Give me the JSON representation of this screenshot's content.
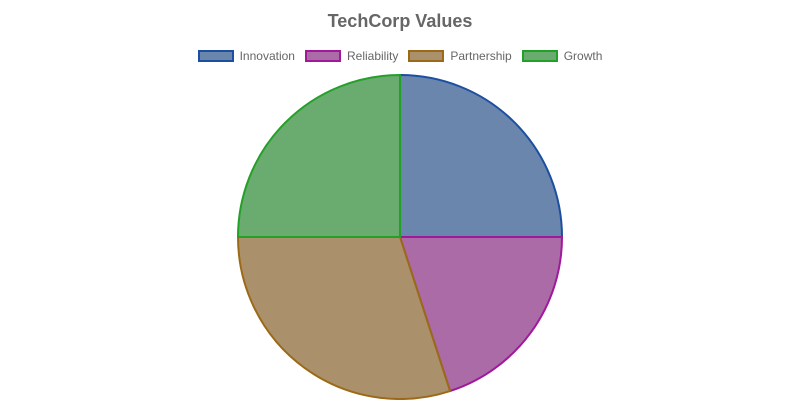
{
  "chart_data": {
    "type": "pie",
    "title": "TechCorp Values",
    "legend_position": "top",
    "categories": [
      "Innovation",
      "Reliability",
      "Partnership",
      "Growth"
    ],
    "values": [
      25,
      20,
      30,
      25
    ],
    "colors": {
      "fill": [
        "#6b86ad",
        "#ab6ba6",
        "#aa916c",
        "#6aab6f"
      ],
      "border": [
        "#1d4fa0",
        "#a0189c",
        "#9c6a16",
        "#23a028"
      ]
    }
  }
}
